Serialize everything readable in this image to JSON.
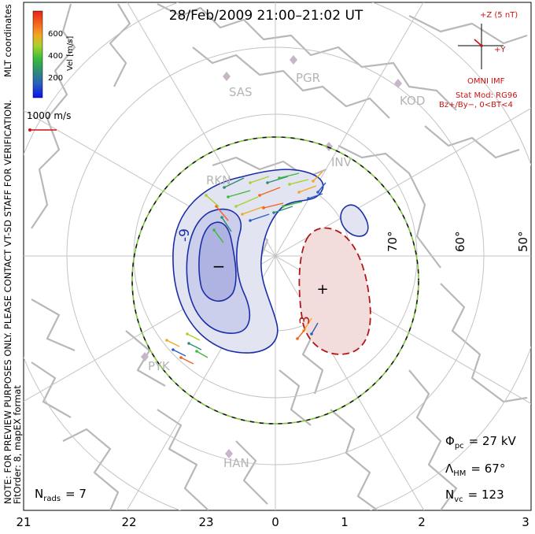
{
  "title": "28/Feb/2009 21:00–21:02 UT",
  "colorbar": {
    "label": "Vel [m/s]",
    "coord_label": "MLT coordinates",
    "ticks": [
      "600",
      "400",
      "200"
    ],
    "colors": [
      "#e8201c",
      "#f2641e",
      "#f5a623",
      "#a7d32a",
      "#3cba3c",
      "#2e8b75",
      "#2a5fbf",
      "#1010ee"
    ]
  },
  "scale_vector": {
    "label": "1000 m/s",
    "color": "#cc1111"
  },
  "imf": {
    "top_label": "+Z (5 nT)",
    "right_label": "+Y",
    "source": "OMNI IMF",
    "stat_mod": "Stat Mod: RG96",
    "condition": "Bz+/By−, 0<BT<4",
    "color": "#cc1111"
  },
  "stations": {
    "sas": "SAS",
    "pgr": "PGR",
    "kod": "KOD",
    "inv": "INV",
    "rkn": "RKN",
    "pyk": "PYK",
    "han": "HAN"
  },
  "latitude_labels": {
    "lat70": "70°",
    "lat60": "60°",
    "lat50": "50°"
  },
  "potential": {
    "neg_label": "-9",
    "pos_label": "3",
    "min_symbol": "−",
    "max_symbol": "+",
    "neg_color": "#1a2ea8",
    "pos_color": "#b01818"
  },
  "side_note": "NOTE: FOR PREVIEW PURPOSES ONLY. PLEASE CONTACT VT-SD STAFF FOR VERIFICATION.",
  "fitorder": "FitOrder: 8,  mapEX format",
  "stats": {
    "nrads_label": "N",
    "nrads_sub": "rads",
    "nrads_value": "=  7",
    "phi_label": "Φ",
    "phi_sub": "pc",
    "phi_value": "=  27 kV",
    "lambda_label": "Λ",
    "lambda_sub": "HM",
    "lambda_value": "=  67°",
    "nvc_label": "N",
    "nvc_sub": "vc",
    "nvc_value": "=  123"
  },
  "mlt_axis": [
    "21",
    "22",
    "23",
    "0",
    "1",
    "2",
    "3"
  ]
}
